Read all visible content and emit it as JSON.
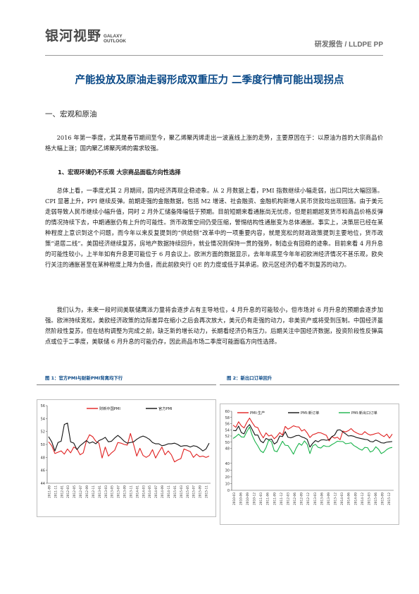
{
  "header": {
    "logo_cn": "银河视野",
    "logo_en_line1": "GALAXY",
    "logo_en_line2": "OUTLOOK",
    "doc_type": "研发报告 / LLDPE PP"
  },
  "title": "产能投放及原油走弱形成双重压力  二季度行情可能出现拐点",
  "section_heading": "一、宏观和原油",
  "paragraphs": {
    "p1": "2016 年第一季度，尤其是春节期间至今，聚乙烯聚丙烯走出一波直线上涨的走势，主要原因在于：以原油为首的大宗商品价格大幅上涨；国内聚乙烯聚丙烯的需求较强。",
    "sub_heading": "1、宏观环境仍不乐观  大宗商品面临方向性选择",
    "p2": "总体上看，一季度尤其 2 月期间，国内经济再现企稳迹象。从 2 月数据上看，PMI 指数继续小幅走弱，出口同比大幅回落。CPI 显著上升，PPI 继续反弹。前期走强的金融数据，包括 M2 增速、社会融资、金融机构新增人民币贷款均出现回落。由于美元走弱导致人民币继续小幅升值，同时 2 月外汇储备降幅低于预期。目前短期来看通胀尚无忧虑，但是前期超发货币和商品价格反弹的情况持续下去，中期通胀仍有上升的可能性。货币政策空间仍受压缩，警惕结构性通胀变为总体通胀。事实上，决策层已经在某种程度上意识到这个问题，而今年以来反复提到的“供给侧”改革中的一项重要内容，就是宽松的财政政策提到主要地位，货币政策“退居二线”。美国经济继续复苏，房地产数据持续回升，就业情况则保持一贯的强势，制造业有回稳的迹象。目前来看 4 月升息的可能性较小，上半年如有升息更可能位于 6 月会议上。欧洲方面的数据显示，去年年底至今年年初欧洲经济情况不甚乐观，欧央行关注的通胀甚至在某种程度上降为负值，而此前欧央行 QE 的力度或低于其承诺。欧元区经济仍看不到复苏的动力。",
    "p3": "我们认为，未来一段时间美联储鹰派力量将会逐步占有主导地位，4 月升息的可能较小，但市场对 6 月升息的预期会逐步加强。欧洲持续宽松，美欧经济政策的边际差异在缩小之后会再次放大，美元仍有走强的动力，非美资产或将受到压制。中国经济虽然阶段性复苏，但在结构调整为完成之前，缺乏新的增长动力，长期看经济仍有压力。后期关注中国经济数据，投资阶段性反弹高点或位于二季度，美联储 6 月升息的可能仍存，因此商品市场二季度可能面临方向性选择。"
  },
  "figures": {
    "fig1_caption": "图 1：官方PMI与财新PMI背离均下行",
    "fig2_caption": "图 2：新出口订单回升"
  },
  "colors": {
    "title": "#0b4a88",
    "series_black": "#111111",
    "series_red": "#e02020",
    "series_green": "#19b34a"
  },
  "chart_data": [
    {
      "type": "line",
      "title": "",
      "legend_position": "top",
      "ylim": [
        44,
        56
      ],
      "yticks": [
        44,
        46,
        48,
        50,
        52,
        54,
        56
      ],
      "x_tick_labels": [
        "2011-09",
        "2011-11",
        "2012-01",
        "2012-03",
        "2012-05",
        "2012-07",
        "2012-09",
        "2012-11",
        "2013-01",
        "2013-03",
        "2013-05",
        "2013-07",
        "2013-09",
        "2013-11",
        "2014-01",
        "2014-03",
        "2014-05",
        "2014-07",
        "2014-09",
        "2014-11",
        "2015-01",
        "2015-03",
        "2015-05",
        "2015-07",
        "2015-09",
        "2015-11"
      ],
      "series": [
        {
          "name": "财新中国PMI",
          "color": "#e02020",
          "values": [
            50.4,
            49.8,
            48.6,
            48.8,
            49.0,
            48.5,
            49.3,
            48.7,
            49.6,
            49.3,
            48.4,
            48.7,
            50.5,
            51.5,
            51.2,
            50.5,
            50.2,
            47.9,
            49.6,
            48.2,
            48.7,
            49.1,
            50.3,
            50.2,
            50.0,
            49.9,
            51.7,
            50.0,
            48.2,
            49.4,
            48.3,
            48.0,
            48.3,
            49.2,
            47.9,
            48.8,
            49.6,
            48.4,
            49.0,
            48.4,
            47.3,
            47.6,
            47.8,
            49.3,
            49.1,
            48.9,
            48.0,
            48.5,
            48.1,
            48.2,
            48.0,
            48.2
          ]
        },
        {
          "name": "官方PMI",
          "color": "#111111",
          "values": [
            51.2,
            50.4,
            49.0,
            50.3,
            50.5,
            53.1,
            53.3,
            50.4,
            50.2,
            49.2,
            49.8,
            50.2,
            50.6,
            50.2,
            50.4,
            50.1,
            50.6,
            50.8,
            51.1,
            50.4,
            50.5,
            51.0,
            51.4,
            51.0,
            50.5,
            50.2,
            50.3,
            50.4,
            50.8,
            51.1,
            51.3,
            51.1,
            50.8,
            50.3,
            50.1,
            50.1,
            49.8,
            49.9,
            50.1,
            50.1,
            50.2,
            50.0,
            49.7,
            49.8,
            49.8,
            49.6,
            49.8,
            49.7,
            49.4,
            49.0,
            49.3,
            50.2
          ]
        }
      ]
    },
    {
      "type": "line",
      "title": "",
      "legend_position": "top",
      "ylim": [
        0,
        60
      ],
      "yticks": [
        0,
        10,
        20,
        30,
        40,
        48,
        50,
        52,
        54,
        56,
        58,
        60
      ],
      "x_tick_labels": [
        "2010-03",
        "2010-06",
        "2010-09",
        "2010-12",
        "2011-03",
        "2011-06",
        "2011-09",
        "2011-12",
        "2012-03",
        "2012-06",
        "2012-09",
        "2012-12",
        "2013-03",
        "2013-06",
        "2013-09",
        "2013-12",
        "2014-03",
        "2014-06",
        "2014-09",
        "2014-12",
        "2015-03",
        "2015-06",
        "2015-09",
        "2015-12"
      ],
      "series": [
        {
          "name": "PMI:生产",
          "color": "#e02020",
          "values": [
            55.5,
            54.8,
            56.6,
            55.3,
            54.6,
            56.4,
            57.8,
            56.3,
            55.0,
            54.7,
            52.8,
            51.4,
            53.0,
            52.0,
            52.3,
            51.1,
            51.9,
            53.1,
            52.3,
            55.1,
            54.2,
            54.7,
            55.3,
            55.0,
            54.9,
            53.6,
            54.1,
            53.0,
            51.5,
            52.4,
            52.7,
            53.1,
            53.0,
            52.6,
            52.2,
            50.4,
            51.8,
            51.3,
            51.6,
            50.8,
            53.6,
            53.3,
            53.7,
            54.4,
            53.5,
            53.0,
            52.6,
            52.5,
            53.4,
            52.7,
            52.3,
            52.5,
            52.8,
            53.0,
            52.3,
            51.8,
            52.6,
            51.3,
            52.6
          ]
        },
        {
          "name": "PMI:新订单",
          "color": "#111111",
          "values": [
            53.8,
            53.7,
            55.2,
            53.1,
            52.7,
            54.7,
            55.7,
            54.0,
            52.3,
            52.3,
            50.4,
            49.8,
            51.2,
            50.8,
            51.0,
            49.4,
            50.0,
            52.0,
            51.8,
            53.4,
            51.6,
            51.4,
            51.7,
            52.1,
            52.2,
            51.7,
            51.4,
            50.9,
            48.4,
            49.6,
            50.5,
            50.1,
            50.7,
            50.8,
            50.6,
            50.8,
            51.8,
            52.3,
            53.9,
            54.0,
            53.3,
            52.7,
            52.0,
            52.1,
            51.9,
            51.5,
            51.3,
            51.1,
            50.9,
            50.8,
            50.2,
            50.1,
            50.7,
            50.3,
            49.8,
            49.7,
            50.0,
            50.1,
            50.2
          ]
        },
        {
          "name": "PMI:新出口订单",
          "color": "#19b34a",
          "values": [
            51.2,
            51.8,
            52.6,
            51.7,
            51.6,
            53.4,
            54.9,
            52.1,
            50.2,
            48.8,
            47.2,
            46.6,
            48.2,
            50.7,
            50.1,
            47.2,
            46.9,
            48.6,
            50.3,
            49.0,
            48.9,
            47.6,
            46.1,
            48.1,
            49.6,
            49.0,
            50.4,
            49.3,
            46.3,
            48.8,
            49.3,
            48.3,
            48.1,
            48.9,
            48.6,
            48.6,
            49.2,
            49.7,
            50.3,
            50.2,
            50.2,
            49.5,
            49.6,
            49.8,
            48.9,
            48.4,
            47.8,
            47.4,
            48.3,
            48.2,
            46.8,
            47.2,
            48.5,
            47.7,
            46.3,
            46.8,
            47.6,
            48.1,
            48.3
          ]
        }
      ]
    }
  ]
}
